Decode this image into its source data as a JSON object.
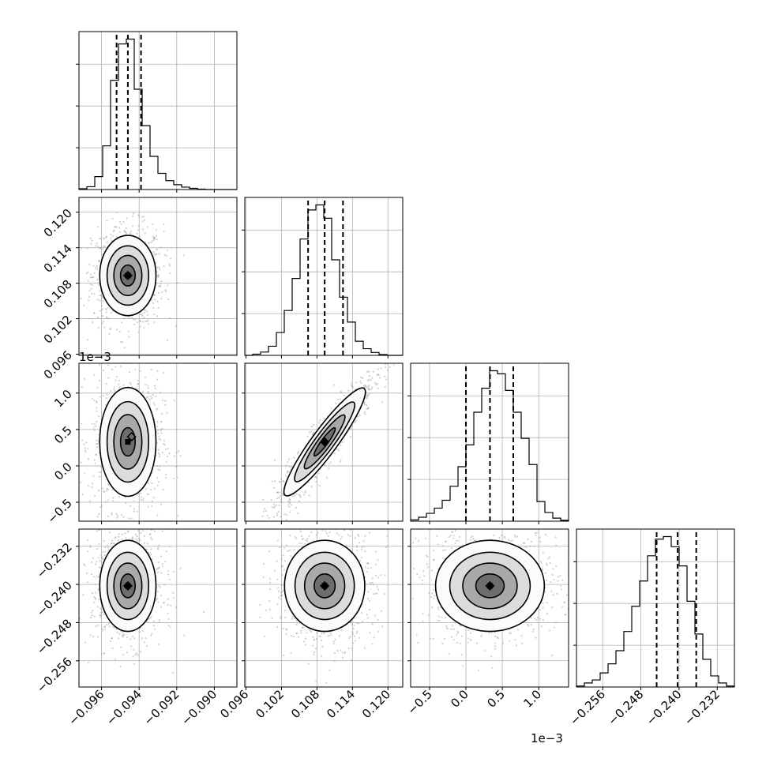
{
  "figure": {
    "type": "corner_plot",
    "background": "#ffffff"
  },
  "chart_data": {
    "type": "corner",
    "variables": [
      {
        "range": [
          -0.0972,
          -0.0888
        ],
        "ticks": [
          -0.096,
          -0.094,
          -0.092,
          -0.09
        ],
        "tick_labels": [
          "−0.096",
          "−0.094",
          "−0.092",
          "−0.090"
        ],
        "scale_label": "",
        "quantiles": [
          -0.0952,
          -0.0946,
          -0.0939
        ],
        "hist_counts": [
          2,
          7,
          32,
          108,
          270,
          360,
          372,
          248,
          158,
          82,
          40,
          22,
          12,
          6,
          3,
          1,
          0,
          0,
          0,
          0
        ]
      },
      {
        "range": [
          0.0958,
          0.1225
        ],
        "ticks": [
          0.096,
          0.102,
          0.108,
          0.114,
          0.12
        ],
        "tick_labels": [
          "0.096",
          "0.102",
          "0.108",
          "0.114",
          "0.120"
        ],
        "scale_label": "",
        "quantiles": [
          0.1065,
          0.1093,
          0.1124
        ],
        "hist_counts": [
          0,
          3,
          8,
          22,
          55,
          108,
          185,
          280,
          350,
          362,
          330,
          230,
          140,
          80,
          34,
          16,
          7,
          2,
          0,
          0
        ]
      },
      {
        "range": [
          -0.00076,
          0.00141
        ],
        "ticks": [
          -0.0005,
          0.0,
          0.0005,
          0.001
        ],
        "tick_labels": [
          "−0.5",
          "0.0",
          "0.5",
          "1.0"
        ],
        "scale_label": "1e−3",
        "quantiles": [
          0.0,
          0.00033,
          0.00065
        ],
        "hist_counts": [
          3,
          9,
          18,
          30,
          48,
          80,
          125,
          175,
          250,
          305,
          345,
          338,
          300,
          250,
          190,
          130,
          45,
          20,
          7,
          2
        ]
      },
      {
        "range": [
          -0.2615,
          -0.2284
        ],
        "ticks": [
          -0.256,
          -0.248,
          -0.24,
          -0.232
        ],
        "tick_labels": [
          "−0.256",
          "−0.248",
          "−0.240",
          "−0.232"
        ],
        "scale_label": "",
        "quantiles": [
          -0.2447,
          -0.2403,
          -0.2364
        ],
        "hist_counts": [
          2,
          8,
          14,
          28,
          46,
          72,
          110,
          160,
          210,
          260,
          293,
          298,
          278,
          240,
          170,
          105,
          55,
          22,
          8,
          2
        ]
      }
    ],
    "points": [
      [
        -0.0946,
        0.1093,
        0.00033,
        -0.2403
      ],
      [
        -0.094,
        0.1079,
        0.00031,
        -0.2403
      ],
      [
        -0.0944,
        0.1083,
        0.00049,
        -0.2401
      ],
      [
        -0.0944,
        0.1091,
        0.0004,
        -0.2401
      ]
    ],
    "grid": true,
    "levels": 4
  }
}
